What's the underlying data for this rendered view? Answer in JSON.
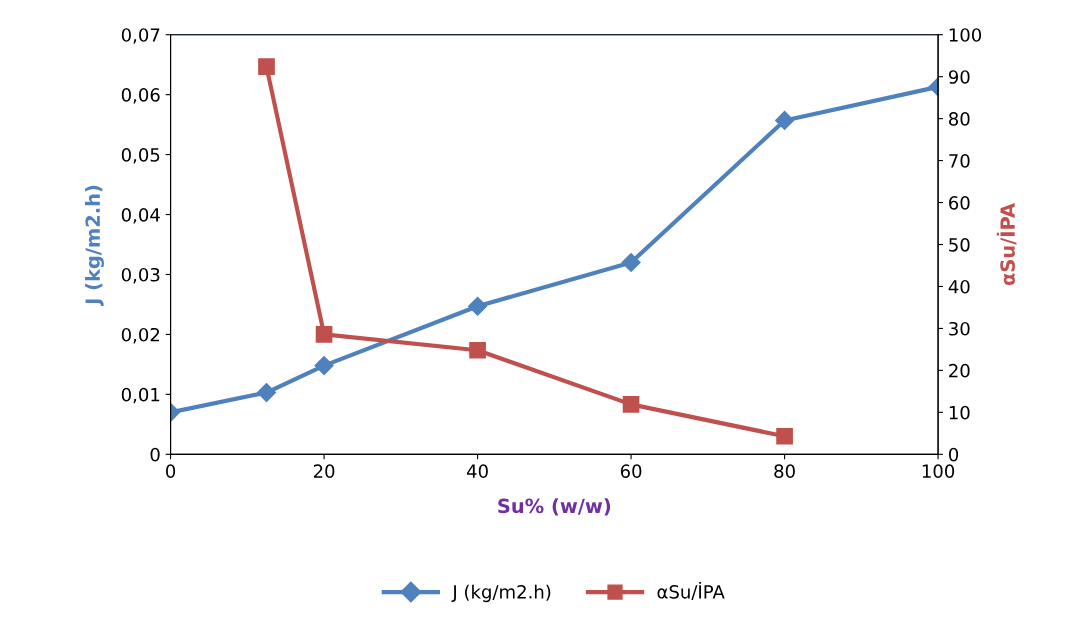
{
  "chart_data": {
    "type": "line",
    "xlabel": "Su% (w/w)",
    "ylabel": "J (kg/m2.h)",
    "y2label": "αSu/İPA",
    "xlim": [
      0,
      100
    ],
    "xticks": [
      0,
      20,
      40,
      60,
      80,
      100
    ],
    "ylim": [
      0,
      0.07
    ],
    "yticks": [
      0,
      {
        "value": 0.01,
        "label": "0,01"
      },
      {
        "value": 0.02,
        "label": "0,02"
      },
      {
        "value": 0.03,
        "label": "0,03"
      },
      {
        "value": 0.04,
        "label": "0,04"
      },
      {
        "value": 0.05,
        "label": "0,05"
      },
      {
        "value": 0.06,
        "label": "0,06"
      },
      {
        "value": 0.07,
        "label": "0,07"
      }
    ],
    "y2lim": [
      0,
      100
    ],
    "y2ticks": [
      0,
      10,
      20,
      30,
      40,
      50,
      60,
      70,
      80,
      90,
      100
    ],
    "grid": false,
    "legend": "bottom",
    "line_style": "solid",
    "series": [
      {
        "name": "J (kg/m2.h)",
        "color": "#4f81bd",
        "marker": "diamond",
        "x": [
          0,
          12.5,
          20,
          40,
          60,
          80,
          100
        ],
        "values": [
          0.007,
          0.0103,
          0.0148,
          0.0247,
          0.032,
          0.0557,
          0.0613
        ]
      },
      {
        "name": "αSu/İPA",
        "color": "#c0504d",
        "marker": "square",
        "axis": "y2",
        "x": [
          12.5,
          20,
          40,
          60,
          80
        ],
        "values": [
          92.4,
          28.6,
          24.8,
          11.9,
          4.3
        ]
      }
    ]
  }
}
